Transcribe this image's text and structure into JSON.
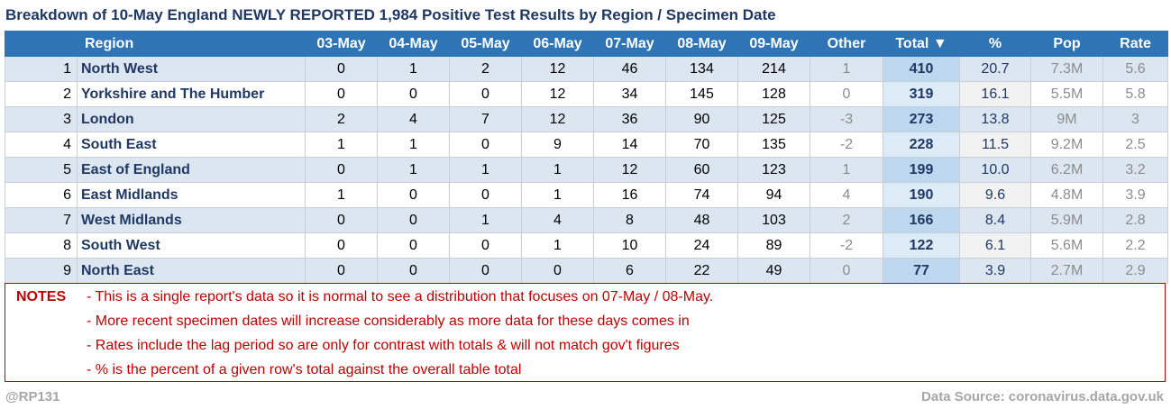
{
  "title": "Breakdown of 10-May England NEWLY REPORTED 1,984 Positive Test Results by Region / Specimen Date",
  "columns": {
    "rank": "",
    "region": "Region",
    "d1": "03-May",
    "d2": "04-May",
    "d3": "05-May",
    "d4": "06-May",
    "d5": "07-May",
    "d6": "08-May",
    "d7": "09-May",
    "other": "Other",
    "total": "Total ▼",
    "pct": "%",
    "pop": "Pop",
    "rate": "Rate"
  },
  "rows": [
    {
      "rank": "1",
      "region": "North West",
      "d1": "0",
      "d2": "1",
      "d3": "2",
      "d4": "12",
      "d5": "46",
      "d6": "134",
      "d7": "214",
      "other": "1",
      "total": "410",
      "pct": "20.7",
      "pop": "7.3M",
      "rate": "5.6"
    },
    {
      "rank": "2",
      "region": "Yorkshire and The Humber",
      "d1": "0",
      "d2": "0",
      "d3": "0",
      "d4": "12",
      "d5": "34",
      "d6": "145",
      "d7": "128",
      "other": "0",
      "total": "319",
      "pct": "16.1",
      "pop": "5.5M",
      "rate": "5.8"
    },
    {
      "rank": "3",
      "region": "London",
      "d1": "2",
      "d2": "4",
      "d3": "7",
      "d4": "12",
      "d5": "36",
      "d6": "90",
      "d7": "125",
      "other": "-3",
      "total": "273",
      "pct": "13.8",
      "pop": "9M",
      "rate": "3"
    },
    {
      "rank": "4",
      "region": "South East",
      "d1": "1",
      "d2": "1",
      "d3": "0",
      "d4": "9",
      "d5": "14",
      "d6": "70",
      "d7": "135",
      "other": "-2",
      "total": "228",
      "pct": "11.5",
      "pop": "9.2M",
      "rate": "2.5"
    },
    {
      "rank": "5",
      "region": "East of England",
      "d1": "0",
      "d2": "1",
      "d3": "1",
      "d4": "1",
      "d5": "12",
      "d6": "60",
      "d7": "123",
      "other": "1",
      "total": "199",
      "pct": "10.0",
      "pop": "6.2M",
      "rate": "3.2"
    },
    {
      "rank": "6",
      "region": "East Midlands",
      "d1": "1",
      "d2": "0",
      "d3": "0",
      "d4": "1",
      "d5": "16",
      "d6": "74",
      "d7": "94",
      "other": "4",
      "total": "190",
      "pct": "9.6",
      "pop": "4.8M",
      "rate": "3.9"
    },
    {
      "rank": "7",
      "region": "West Midlands",
      "d1": "0",
      "d2": "0",
      "d3": "1",
      "d4": "4",
      "d5": "8",
      "d6": "48",
      "d7": "103",
      "other": "2",
      "total": "166",
      "pct": "8.4",
      "pop": "5.9M",
      "rate": "2.8"
    },
    {
      "rank": "8",
      "region": "South West",
      "d1": "0",
      "d2": "0",
      "d3": "0",
      "d4": "1",
      "d5": "10",
      "d6": "24",
      "d7": "89",
      "other": "-2",
      "total": "122",
      "pct": "6.1",
      "pop": "5.6M",
      "rate": "2.2"
    },
    {
      "rank": "9",
      "region": "North East",
      "d1": "0",
      "d2": "0",
      "d3": "0",
      "d4": "0",
      "d5": "6",
      "d6": "22",
      "d7": "49",
      "other": "0",
      "total": "77",
      "pct": "3.9",
      "pop": "2.7M",
      "rate": "2.9"
    }
  ],
  "notes": {
    "label": "NOTES",
    "lines": [
      "- This is a single report's data so it is normal to see a distribution that focuses on 07-May / 08-May.",
      "- More recent specimen dates will increase considerably as more data for these days comes in",
      "- Rates include the lag period so are only for contrast with totals & will not match gov't figures",
      "- % is the percent of a given row's total against the overall table total"
    ]
  },
  "footer": {
    "author": "@RP131",
    "source": "Data Source: coronavirus.data.gov.uk"
  },
  "colors": {
    "header_bg": "#2f75b5",
    "title": "#1f3864",
    "notes": "#c00000"
  }
}
